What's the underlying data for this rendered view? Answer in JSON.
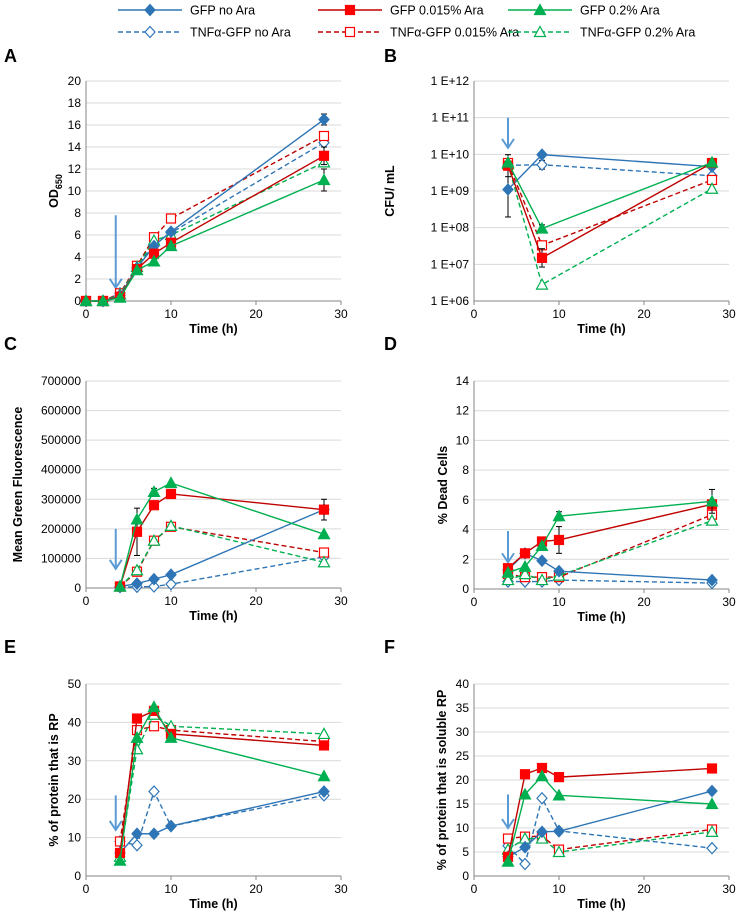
{
  "legend": [
    {
      "name": "GFP no Ara",
      "color": "#2E75B6",
      "dashed": false,
      "marker": "diamond",
      "filled": true
    },
    {
      "name": "GFP 0.015% Ara",
      "color": "#C00000",
      "dashed": false,
      "marker": "square",
      "filled": true
    },
    {
      "name": "GFP 0.2% Ara",
      "color": "#00B050",
      "dashed": false,
      "marker": "triangle",
      "filled": true
    },
    {
      "name": "TNFα-GFP no Ara",
      "color": "#2E75B6",
      "dashed": true,
      "marker": "diamond",
      "filled": false
    },
    {
      "name": "TNFα-GFP 0.015% Ara",
      "color": "#C00000",
      "dashed": true,
      "marker": "square",
      "filled": false
    },
    {
      "name": "TNFα-GFP 0.2% Ara",
      "color": "#00B050",
      "dashed": true,
      "marker": "triangle",
      "filled": false
    }
  ],
  "marker_colors": {
    "red": "#FF0000",
    "green": "#00B050",
    "blue": "#2E75B6"
  },
  "chart_data": [
    {
      "panel": "A",
      "type": "line",
      "xlabel": "Time (h)",
      "ylabel": "OD",
      "ylabel_sub": "650",
      "xlim": [
        0,
        30
      ],
      "xticks": [
        0,
        10,
        20,
        30
      ],
      "ylim": [
        0,
        20
      ],
      "yticks": [
        0,
        2,
        4,
        6,
        8,
        10,
        12,
        14,
        16,
        18,
        20
      ],
      "yscale": "linear",
      "arrow": {
        "x": 3.5,
        "y_top": 7.8,
        "y_bottom": 1.2
      },
      "series": [
        {
          "name": "GFP no Ara",
          "x": [
            0,
            2,
            4,
            6,
            8,
            10,
            28
          ],
          "y": [
            0,
            0,
            0.5,
            3,
            5,
            6.3,
            16.5
          ],
          "err": [
            0,
            0,
            0,
            0,
            0,
            0,
            0.5
          ]
        },
        {
          "name": "GFP 0.015% Ara",
          "x": [
            0,
            2,
            4,
            6,
            8,
            10,
            28
          ],
          "y": [
            0,
            0,
            0.4,
            2.9,
            4.3,
            5.3,
            13.2
          ],
          "err": [
            0,
            0,
            0,
            0,
            0,
            0,
            0.8
          ]
        },
        {
          "name": "GFP 0.2% Ara",
          "x": [
            0,
            2,
            4,
            6,
            8,
            10,
            28
          ],
          "y": [
            0,
            0,
            0.3,
            2.8,
            3.6,
            5,
            11
          ],
          "err": [
            0,
            0,
            0,
            0,
            0,
            0,
            1
          ]
        },
        {
          "name": "TNFα-GFP no Ara",
          "x": [
            0,
            2,
            4,
            6,
            8,
            10,
            28
          ],
          "y": [
            0,
            0,
            0.7,
            3,
            5.2,
            6.2,
            14.4
          ],
          "err": [
            0,
            0,
            0,
            0,
            0,
            0,
            0
          ]
        },
        {
          "name": "TNFα-GFP 0.015% Ara",
          "x": [
            0,
            2,
            4,
            6,
            8,
            10,
            28
          ],
          "y": [
            0,
            0,
            0.7,
            3.2,
            5.8,
            7.5,
            15
          ],
          "err": [
            0,
            0,
            0,
            0,
            0,
            0,
            0
          ]
        },
        {
          "name": "TNFα-GFP 0.2% Ara",
          "x": [
            0,
            2,
            4,
            6,
            8,
            10,
            28
          ],
          "y": [
            0,
            0,
            0.6,
            3.1,
            5.5,
            6,
            12.6
          ],
          "err": [
            0,
            0,
            0,
            0,
            0,
            0,
            0
          ]
        }
      ]
    },
    {
      "panel": "B",
      "type": "line",
      "xlabel": "Time (h)",
      "ylabel": "CFU/ mL",
      "xlim": [
        0,
        30
      ],
      "xticks": [
        0,
        10,
        20,
        30
      ],
      "ylim": [
        1000000,
        1000000000000
      ],
      "yticks": [
        1000000,
        10000000,
        100000000,
        1000000000,
        10000000000,
        100000000000,
        1000000000000
      ],
      "yticklabels": [
        "1 E+06",
        "1 E+07",
        "1 E+08",
        "1 E+09",
        "1 E+10",
        "1 E+11",
        "1 E+12"
      ],
      "yscale": "log",
      "arrow": {
        "x": 4,
        "y_top": 100000000000,
        "y_bottom": 15000000000
      },
      "series": [
        {
          "name": "GFP no Ara",
          "x": [
            4,
            8,
            28
          ],
          "y": [
            1100000000,
            9800000000,
            4600000000
          ],
          "err": [
            0.75,
            0,
            0
          ]
        },
        {
          "name": "GFP 0.015% Ara",
          "x": [
            4,
            8,
            28
          ],
          "y": [
            4900000000,
            15000000,
            5800000000
          ],
          "err": [
            0.3,
            0.25,
            0
          ]
        },
        {
          "name": "GFP 0.2% Ara",
          "x": [
            4,
            8,
            28
          ],
          "y": [
            6000000000,
            95000000,
            6000000000
          ],
          "err": [
            0,
            0.1,
            0
          ]
        },
        {
          "name": "TNFα-GFP no Ara",
          "x": [
            4,
            8,
            28
          ],
          "y": [
            5000000000,
            5200000000,
            2600000000
          ],
          "err": [
            0,
            0.12,
            0
          ]
        },
        {
          "name": "TNFα-GFP 0.015% Ara",
          "x": [
            4,
            8,
            28
          ],
          "y": [
            5800000000,
            33000000,
            2000000000
          ],
          "err": [
            0,
            0,
            0
          ]
        },
        {
          "name": "TNFα-GFP 0.2% Ara",
          "x": [
            4,
            8,
            28
          ],
          "y": [
            5400000000,
            2800000,
            1150000000
          ],
          "err": [
            0,
            0,
            0
          ]
        }
      ]
    },
    {
      "panel": "C",
      "type": "line",
      "xlabel": "Time (h)",
      "ylabel": "Mean Green Fluorescence",
      "xlim": [
        0,
        30
      ],
      "xticks": [
        0,
        10,
        20,
        30
      ],
      "ylim": [
        0,
        700000
      ],
      "yticks": [
        0,
        100000,
        200000,
        300000,
        400000,
        500000,
        600000,
        700000
      ],
      "yscale": "linear",
      "arrow": {
        "x": 3.5,
        "y_top": 200000,
        "y_bottom": 65000
      },
      "series": [
        {
          "name": "GFP no Ara",
          "x": [
            4,
            6,
            8,
            10,
            28
          ],
          "y": [
            5000,
            15000,
            30000,
            45000,
            265000
          ],
          "err": [
            0,
            0,
            0,
            0,
            0
          ]
        },
        {
          "name": "GFP 0.015% Ara",
          "x": [
            4,
            6,
            8,
            10,
            28
          ],
          "y": [
            5000,
            190000,
            280000,
            318000,
            265000
          ],
          "err": [
            0,
            80000,
            0,
            0,
            35000
          ]
        },
        {
          "name": "GFP 0.2% Ara",
          "x": [
            4,
            6,
            8,
            10,
            28
          ],
          "y": [
            5000,
            232000,
            325000,
            355000,
            182000
          ],
          "err": [
            0,
            0,
            12000,
            0,
            0
          ]
        },
        {
          "name": "TNFα-GFP no Ara",
          "x": [
            4,
            6,
            8,
            10,
            28
          ],
          "y": [
            3000,
            4000,
            5000,
            13000,
            105000
          ],
          "err": [
            0,
            0,
            0,
            0,
            0
          ]
        },
        {
          "name": "TNFα-GFP 0.015% Ara",
          "x": [
            4,
            6,
            8,
            10,
            28
          ],
          "y": [
            5000,
            55000,
            160000,
            207000,
            120000
          ],
          "err": [
            0,
            0,
            0,
            0,
            0
          ]
        },
        {
          "name": "TNFα-GFP 0.2% Ara",
          "x": [
            4,
            6,
            8,
            10,
            28
          ],
          "y": [
            5000,
            60000,
            160000,
            210000,
            87000
          ],
          "err": [
            0,
            0,
            0,
            0,
            0
          ]
        }
      ]
    },
    {
      "panel": "D",
      "type": "line",
      "xlabel": "Time (h)",
      "ylabel": "% Dead Cells",
      "xlim": [
        0,
        30
      ],
      "xticks": [
        0,
        10,
        20,
        30
      ],
      "ylim": [
        0,
        14
      ],
      "yticks": [
        0,
        2,
        4,
        6,
        8,
        10,
        12,
        14
      ],
      "yscale": "linear",
      "arrow": {
        "x": 4,
        "y_top": 3.9,
        "y_bottom": 1.8
      },
      "series": [
        {
          "name": "GFP no Ara",
          "x": [
            4,
            6,
            8,
            10,
            28
          ],
          "y": [
            1.3,
            2.4,
            1.9,
            1.2,
            0.6
          ],
          "err": [
            0,
            0,
            0,
            0,
            0
          ]
        },
        {
          "name": "GFP 0.015% Ara",
          "x": [
            4,
            6,
            8,
            10,
            28
          ],
          "y": [
            1.4,
            2.4,
            3.2,
            3.3,
            5.7
          ],
          "err": [
            0,
            0,
            0,
            0.9,
            0
          ]
        },
        {
          "name": "GFP 0.2% Ara",
          "x": [
            4,
            6,
            8,
            10,
            28
          ],
          "y": [
            1.1,
            1.5,
            2.9,
            4.9,
            5.9
          ],
          "err": [
            0,
            0,
            0,
            0.3,
            0.8
          ]
        },
        {
          "name": "TNFα-GFP no Ara",
          "x": [
            4,
            6,
            8,
            10,
            28
          ],
          "y": [
            0.5,
            0.5,
            0.5,
            0.6,
            0.4
          ],
          "err": [
            0,
            0,
            0,
            0,
            0
          ]
        },
        {
          "name": "TNFα-GFP 0.015% Ara",
          "x": [
            4,
            6,
            8,
            10,
            28
          ],
          "y": [
            1.0,
            0.8,
            0.8,
            0.8,
            5.0
          ],
          "err": [
            0,
            0,
            0,
            0,
            0
          ]
        },
        {
          "name": "TNFα-GFP 0.2% Ara",
          "x": [
            4,
            6,
            8,
            10,
            28
          ],
          "y": [
            0.6,
            1.0,
            0.6,
            0.9,
            4.6
          ],
          "err": [
            0,
            0,
            0,
            0,
            0
          ]
        }
      ]
    },
    {
      "panel": "E",
      "type": "line",
      "xlabel": "Time (h)",
      "ylabel": "% of protein that is RP",
      "xlim": [
        0,
        30
      ],
      "xticks": [
        0,
        10,
        20,
        30
      ],
      "ylim": [
        0,
        50
      ],
      "yticks": [
        0,
        10,
        20,
        30,
        40,
        50
      ],
      "yscale": "linear",
      "arrow": {
        "x": 3.5,
        "y_top": 21,
        "y_bottom": 12
      },
      "series": [
        {
          "name": "GFP no Ara",
          "x": [
            4,
            6,
            8,
            10,
            28
          ],
          "y": [
            6,
            11,
            11,
            13,
            22
          ],
          "err": [
            0,
            0,
            0,
            0,
            0
          ]
        },
        {
          "name": "GFP 0.015% Ara",
          "x": [
            4,
            6,
            8,
            10,
            28
          ],
          "y": [
            6,
            41,
            43,
            37,
            34
          ],
          "err": [
            0,
            0,
            0,
            0,
            0
          ]
        },
        {
          "name": "GFP 0.2% Ara",
          "x": [
            4,
            6,
            8,
            10,
            28
          ],
          "y": [
            4,
            36,
            44,
            36,
            26
          ],
          "err": [
            0,
            0,
            0,
            0,
            0
          ]
        },
        {
          "name": "TNFα-GFP no Ara",
          "x": [
            4,
            6,
            8,
            10,
            28
          ],
          "y": [
            9,
            8,
            22,
            13,
            21
          ],
          "err": [
            0,
            0,
            0,
            0,
            0
          ]
        },
        {
          "name": "TNFα-GFP 0.015% Ara",
          "x": [
            4,
            6,
            8,
            10,
            28
          ],
          "y": [
            9,
            38,
            39,
            38,
            35
          ],
          "err": [
            0,
            0,
            0,
            0,
            0
          ]
        },
        {
          "name": "TNFα-GFP 0.2% Ara",
          "x": [
            4,
            6,
            8,
            10,
            28
          ],
          "y": [
            5,
            33,
            42,
            39,
            37
          ],
          "err": [
            0,
            0,
            0,
            0,
            0
          ]
        }
      ]
    },
    {
      "panel": "F",
      "type": "line",
      "xlabel": "Time (h)",
      "ylabel": "% of protein that is soluble RP",
      "xlim": [
        0,
        30
      ],
      "xticks": [
        0,
        10,
        20,
        30
      ],
      "ylim": [
        0,
        40
      ],
      "yticks": [
        0,
        5,
        10,
        15,
        20,
        25,
        30,
        35,
        40
      ],
      "yscale": "linear",
      "arrow": {
        "x": 4,
        "y_top": 17,
        "y_bottom": 10
      },
      "series": [
        {
          "name": "GFP no Ara",
          "x": [
            4,
            6,
            8,
            10,
            28
          ],
          "y": [
            4,
            6,
            9.2,
            9.3,
            17.7
          ],
          "err": [
            0,
            0,
            0,
            0,
            0
          ]
        },
        {
          "name": "GFP 0.015% Ara",
          "x": [
            4,
            6,
            8,
            10,
            28
          ],
          "y": [
            4,
            21.2,
            22.5,
            20.6,
            22.4
          ],
          "err": [
            0,
            0,
            0,
            0,
            0
          ]
        },
        {
          "name": "GFP 0.2% Ara",
          "x": [
            4,
            6,
            8,
            10,
            28
          ],
          "y": [
            3,
            17,
            20.8,
            16.8,
            15
          ],
          "err": [
            0,
            0,
            0,
            0,
            0
          ]
        },
        {
          "name": "TNFα-GFP no Ara",
          "x": [
            4,
            6,
            8,
            10,
            28
          ],
          "y": [
            6.3,
            2.5,
            16.2,
            9.4,
            5.8
          ],
          "err": [
            0,
            0,
            0,
            0,
            0
          ]
        },
        {
          "name": "TNFα-GFP 0.015% Ara",
          "x": [
            4,
            6,
            8,
            10,
            28
          ],
          "y": [
            7.8,
            8.2,
            8.3,
            5.5,
            9.7
          ],
          "err": [
            0,
            0,
            0,
            0,
            0
          ]
        },
        {
          "name": "TNFα-GFP 0.2% Ara",
          "x": [
            4,
            6,
            8,
            10,
            28
          ],
          "y": [
            5.5,
            7.8,
            7.8,
            5.0,
            9.2
          ],
          "err": [
            0,
            0,
            0,
            0,
            0
          ]
        }
      ]
    }
  ]
}
